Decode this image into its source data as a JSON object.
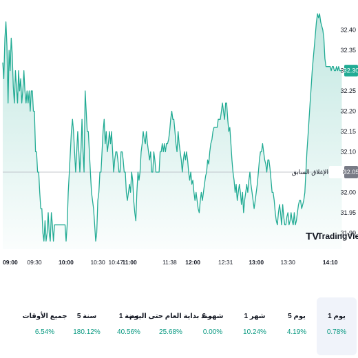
{
  "colors": {
    "line": "#22ab94",
    "fill_top": "rgba(34,171,148,0.28)",
    "fill_bottom": "rgba(34,171,148,0.02)",
    "positive": "#089981",
    "badge_bg": "#22ab94",
    "prev_badge_bg": "#787b86",
    "active_tab_bg": "#f0f3fa"
  },
  "branding": {
    "logo_text": "TradingView"
  },
  "chart_data": {
    "type": "area",
    "y_ticks": [
      "32.40",
      "32.35",
      "32.30",
      "32.25",
      "32.20",
      "32.15",
      "32.10",
      "32.05",
      "32.00",
      "31.95",
      "31.90"
    ],
    "ylim": [
      31.86,
      32.44
    ],
    "x_ticks": [
      {
        "t": 0,
        "label": "09:00",
        "major": true
      },
      {
        "t": 30,
        "label": "09:30",
        "major": false
      },
      {
        "t": 60,
        "label": "10:00",
        "major": true
      },
      {
        "t": 90,
        "label": "10:30",
        "major": false
      },
      {
        "t": 107,
        "label": "10:47",
        "major": false
      },
      {
        "t": 120,
        "label": "11:00",
        "major": true
      },
      {
        "t": 158,
        "label": "11:38",
        "major": false
      },
      {
        "t": 180,
        "label": "12:00",
        "major": true
      },
      {
        "t": 211,
        "label": "12:31",
        "major": false
      },
      {
        "t": 240,
        "label": "13:00",
        "major": true
      },
      {
        "t": 270,
        "label": "13:30",
        "major": false
      },
      {
        "t": 310,
        "label": "14:10",
        "major": true
      }
    ],
    "xlim": [
      0,
      322
    ],
    "points": [
      [
        0,
        32.32
      ],
      [
        1,
        32.28
      ],
      [
        2,
        32.38
      ],
      [
        3,
        32.42
      ],
      [
        4,
        32.36
      ],
      [
        5,
        32.22
      ],
      [
        6,
        32.35
      ],
      [
        7,
        32.3
      ],
      [
        8,
        32.38
      ],
      [
        9,
        32.34
      ],
      [
        10,
        32.26
      ],
      [
        11,
        32.22
      ],
      [
        12,
        32.3
      ],
      [
        13,
        32.26
      ],
      [
        14,
        32.22
      ],
      [
        15,
        32.3
      ],
      [
        16,
        32.25
      ],
      [
        17,
        32.28
      ],
      [
        18,
        32.22
      ],
      [
        19,
        32.25
      ],
      [
        20,
        32.3
      ],
      [
        21,
        32.25
      ],
      [
        22,
        32.22
      ],
      [
        23,
        32.25
      ],
      [
        24,
        32.22
      ],
      [
        25,
        32.25
      ],
      [
        26,
        32.2
      ],
      [
        27,
        32.25
      ],
      [
        28,
        32.25
      ],
      [
        29,
        32.2
      ],
      [
        30,
        32.2
      ],
      [
        31,
        32.1
      ],
      [
        32,
        32.1
      ],
      [
        33,
        32.05
      ],
      [
        34,
        32.05
      ],
      [
        35,
        32.0
      ],
      [
        36,
        31.96
      ],
      [
        37,
        31.96
      ],
      [
        38,
        31.9
      ],
      [
        39,
        31.88
      ],
      [
        40,
        31.93
      ],
      [
        41,
        31.88
      ],
      [
        42,
        31.9
      ],
      [
        43,
        31.95
      ],
      [
        44,
        31.9
      ],
      [
        45,
        31.88
      ],
      [
        46,
        31.95
      ],
      [
        47,
        31.92
      ],
      [
        48,
        31.88
      ],
      [
        49,
        31.92
      ],
      [
        50,
        31.92
      ],
      [
        51,
        31.92
      ],
      [
        52,
        31.92
      ],
      [
        53,
        31.92
      ],
      [
        54,
        31.92
      ],
      [
        55,
        31.92
      ],
      [
        56,
        31.92
      ],
      [
        57,
        31.92
      ],
      [
        58,
        31.92
      ],
      [
        59,
        31.92
      ],
      [
        60,
        31.88
      ],
      [
        61,
        31.92
      ],
      [
        62,
        32.0
      ],
      [
        63,
        32.05
      ],
      [
        64,
        32.1
      ],
      [
        65,
        32.15
      ],
      [
        66,
        32.18
      ],
      [
        67,
        32.15
      ],
      [
        68,
        32.1
      ],
      [
        69,
        32.05
      ],
      [
        70,
        32.1
      ],
      [
        71,
        32.15
      ],
      [
        72,
        32.1
      ],
      [
        73,
        32.05
      ],
      [
        74,
        32.1
      ],
      [
        75,
        32.18
      ],
      [
        76,
        32.1
      ],
      [
        77,
        32.05
      ],
      [
        78,
        32.25
      ],
      [
        79,
        32.2
      ],
      [
        80,
        32.15
      ],
      [
        81,
        32.15
      ],
      [
        82,
        32.1
      ],
      [
        83,
        32.05
      ],
      [
        84,
        32.0
      ],
      [
        85,
        31.98
      ],
      [
        86,
        31.96
      ],
      [
        87,
        31.92
      ],
      [
        88,
        31.88
      ],
      [
        89,
        31.9
      ],
      [
        90,
        31.98
      ],
      [
        91,
        32.0
      ],
      [
        92,
        32.05
      ],
      [
        93,
        32.05
      ],
      [
        94,
        32.1
      ],
      [
        95,
        32.15
      ],
      [
        96,
        32.18
      ],
      [
        97,
        32.12
      ],
      [
        98,
        32.15
      ],
      [
        99,
        32.1
      ],
      [
        100,
        32.12
      ],
      [
        101,
        32.15
      ],
      [
        102,
        32.12
      ],
      [
        103,
        32.15
      ],
      [
        104,
        32.1
      ],
      [
        105,
        32.05
      ],
      [
        106,
        32.08
      ],
      [
        107,
        32.1
      ],
      [
        108,
        32.1
      ],
      [
        109,
        32.08
      ],
      [
        110,
        32.05
      ],
      [
        111,
        32.05
      ],
      [
        112,
        32.1
      ],
      [
        113,
        32.1
      ],
      [
        114,
        32.08
      ],
      [
        115,
        32.05
      ],
      [
        116,
        32.05
      ],
      [
        117,
        32.0
      ],
      [
        118,
        31.98
      ],
      [
        119,
        32.0
      ],
      [
        120,
        32.02
      ],
      [
        121,
        32.0
      ],
      [
        122,
        32.05
      ],
      [
        123,
        32.03
      ],
      [
        124,
        31.98
      ],
      [
        125,
        31.95
      ],
      [
        126,
        31.93
      ],
      [
        127,
        32.0
      ],
      [
        128,
        32.05
      ],
      [
        129,
        32.03
      ],
      [
        130,
        32.05
      ],
      [
        131,
        32.1
      ],
      [
        132,
        32.12
      ],
      [
        133,
        32.15
      ],
      [
        134,
        32.13
      ],
      [
        135,
        32.12
      ],
      [
        136,
        32.15
      ],
      [
        137,
        32.12
      ],
      [
        138,
        32.1
      ],
      [
        139,
        32.08
      ],
      [
        140,
        32.1
      ],
      [
        141,
        32.05
      ],
      [
        142,
        32.05
      ],
      [
        143,
        32.1
      ],
      [
        144,
        32.08
      ],
      [
        145,
        32.05
      ],
      [
        146,
        32.05
      ],
      [
        147,
        32.05
      ],
      [
        148,
        32.05
      ],
      [
        149,
        32.1
      ],
      [
        150,
        32.1
      ],
      [
        151,
        32.12
      ],
      [
        152,
        32.1
      ],
      [
        153,
        32.12
      ],
      [
        154,
        32.1
      ],
      [
        155,
        32.12
      ],
      [
        156,
        32.12
      ],
      [
        157,
        32.13
      ],
      [
        158,
        32.15
      ],
      [
        159,
        32.18
      ],
      [
        160,
        32.2
      ],
      [
        161,
        32.18
      ],
      [
        162,
        32.18
      ],
      [
        163,
        32.15
      ],
      [
        164,
        32.12
      ],
      [
        165,
        32.1
      ],
      [
        166,
        32.15
      ],
      [
        167,
        32.12
      ],
      [
        168,
        32.1
      ],
      [
        169,
        32.08
      ],
      [
        170,
        32.05
      ],
      [
        171,
        32.08
      ],
      [
        172,
        32.1
      ],
      [
        173,
        32.08
      ],
      [
        174,
        32.1
      ],
      [
        175,
        32.08
      ],
      [
        176,
        32.05
      ],
      [
        177,
        32.03
      ],
      [
        178,
        32.05
      ],
      [
        179,
        32.02
      ],
      [
        180,
        32.03
      ],
      [
        181,
        32.0
      ],
      [
        182,
        31.98
      ],
      [
        183,
        32.0
      ],
      [
        184,
        31.98
      ],
      [
        185,
        31.96
      ],
      [
        186,
        31.95
      ],
      [
        187,
        31.98
      ],
      [
        188,
        32.0
      ],
      [
        189,
        31.98
      ],
      [
        190,
        32.0
      ],
      [
        191,
        32.02
      ],
      [
        192,
        32.04
      ],
      [
        193,
        32.05
      ],
      [
        194,
        32.08
      ],
      [
        195,
        32.07
      ],
      [
        196,
        32.1
      ],
      [
        197,
        32.12
      ],
      [
        198,
        32.13
      ],
      [
        199,
        32.15
      ],
      [
        200,
        32.16
      ],
      [
        201,
        32.16
      ],
      [
        202,
        32.16
      ],
      [
        203,
        32.16
      ],
      [
        204,
        32.18
      ],
      [
        205,
        32.18
      ],
      [
        206,
        32.18
      ],
      [
        207,
        32.2
      ],
      [
        208,
        32.22
      ],
      [
        209,
        32.2
      ],
      [
        210,
        32.18
      ],
      [
        211,
        32.22
      ],
      [
        212,
        32.22
      ],
      [
        213,
        32.18
      ],
      [
        214,
        32.15
      ],
      [
        215,
        32.16
      ],
      [
        216,
        32.12
      ],
      [
        217,
        32.08
      ],
      [
        218,
        32.05
      ],
      [
        219,
        32.03
      ],
      [
        220,
        32.0
      ],
      [
        221,
        32.02
      ],
      [
        222,
        31.98
      ],
      [
        223,
        32.0
      ],
      [
        224,
        32.02
      ],
      [
        225,
        32.0
      ],
      [
        226,
        31.97
      ],
      [
        227,
        32.0
      ],
      [
        228,
        31.95
      ],
      [
        229,
        31.98
      ],
      [
        230,
        32.0
      ],
      [
        231,
        32.02
      ],
      [
        232,
        32.0
      ],
      [
        233,
        32.03
      ],
      [
        234,
        32.05
      ],
      [
        235,
        32.02
      ],
      [
        236,
        32.0
      ],
      [
        237,
        31.98
      ],
      [
        238,
        31.96
      ],
      [
        239,
        31.98
      ],
      [
        240,
        32.0
      ],
      [
        241,
        32.02
      ],
      [
        242,
        32.05
      ],
      [
        243,
        32.08
      ],
      [
        244,
        32.1
      ],
      [
        245,
        32.1
      ],
      [
        246,
        32.12
      ],
      [
        247,
        32.1
      ],
      [
        248,
        32.08
      ],
      [
        249,
        32.07
      ],
      [
        250,
        32.05
      ],
      [
        251,
        32.08
      ],
      [
        252,
        32.08
      ],
      [
        253,
        32.06
      ],
      [
        254,
        32.03
      ],
      [
        255,
        32.0
      ],
      [
        256,
        32.0
      ],
      [
        257,
        31.98
      ],
      [
        258,
        31.95
      ],
      [
        259,
        31.93
      ],
      [
        260,
        31.92
      ],
      [
        261,
        31.95
      ],
      [
        262,
        31.97
      ],
      [
        263,
        31.95
      ],
      [
        264,
        31.92
      ],
      [
        265,
        31.97
      ],
      [
        266,
        31.94
      ],
      [
        267,
        31.92
      ],
      [
        268,
        31.92
      ],
      [
        269,
        31.94
      ],
      [
        270,
        31.95
      ],
      [
        271,
        31.92
      ],
      [
        272,
        31.93
      ],
      [
        273,
        31.95
      ],
      [
        274,
        31.93
      ],
      [
        275,
        31.92
      ],
      [
        276,
        31.95
      ],
      [
        277,
        31.92
      ],
      [
        278,
        31.93
      ],
      [
        279,
        31.95
      ],
      [
        280,
        31.97
      ],
      [
        281,
        31.98
      ],
      [
        282,
        31.98
      ],
      [
        283,
        31.96
      ],
      [
        284,
        31.97
      ],
      [
        285,
        31.98
      ],
      [
        286,
        32.0
      ],
      [
        287,
        32.05
      ],
      [
        288,
        32.1
      ],
      [
        289,
        32.14
      ],
      [
        290,
        32.18
      ],
      [
        291,
        32.22
      ],
      [
        292,
        32.26
      ],
      [
        293,
        32.3
      ],
      [
        294,
        32.33
      ],
      [
        295,
        32.36
      ],
      [
        296,
        32.39
      ],
      [
        297,
        32.42
      ],
      [
        298,
        32.44
      ],
      [
        299,
        32.43
      ],
      [
        300,
        32.44
      ],
      [
        301,
        32.42
      ],
      [
        302,
        32.41
      ],
      [
        303,
        32.4
      ],
      [
        304,
        32.38
      ],
      [
        305,
        32.33
      ],
      [
        306,
        32.31
      ],
      [
        307,
        32.31
      ],
      [
        308,
        32.31
      ],
      [
        309,
        32.31
      ],
      [
        310,
        32.31
      ],
      [
        311,
        32.3
      ],
      [
        312,
        32.31
      ],
      [
        313,
        32.31
      ],
      [
        314,
        32.3
      ],
      [
        315,
        32.3
      ],
      [
        316,
        32.31
      ],
      [
        317,
        32.3
      ],
      [
        318,
        32.31
      ],
      [
        319,
        32.3
      ],
      [
        320,
        32.3
      ],
      [
        321,
        32.3
      ]
    ],
    "last_price": 32.3,
    "last_price_label": "32.30",
    "prev_close": 32.05,
    "prev_close_label": "الإغلاق السابق",
    "prev_close_value": "32.05",
    "grid": false
  },
  "performance": [
    {
      "label": "1 يوم",
      "value": "0.78%",
      "active": true
    },
    {
      "label": "5 يوم",
      "value": "4.19%",
      "active": false
    },
    {
      "label": "1 شهر",
      "value": "10.24%",
      "active": false
    },
    {
      "label": "6 شهر",
      "value": "0.00%",
      "active": false
    },
    {
      "label": "منذ بداية العام حتى اليوم",
      "value": "25.68%",
      "active": false
    },
    {
      "label": "1 سنة",
      "value": "40.56%",
      "active": false
    },
    {
      "label": "5 سنة",
      "value": "180.12%",
      "active": false
    },
    {
      "label": "جميع الأوقات",
      "value": "6.54%",
      "active": false
    }
  ]
}
